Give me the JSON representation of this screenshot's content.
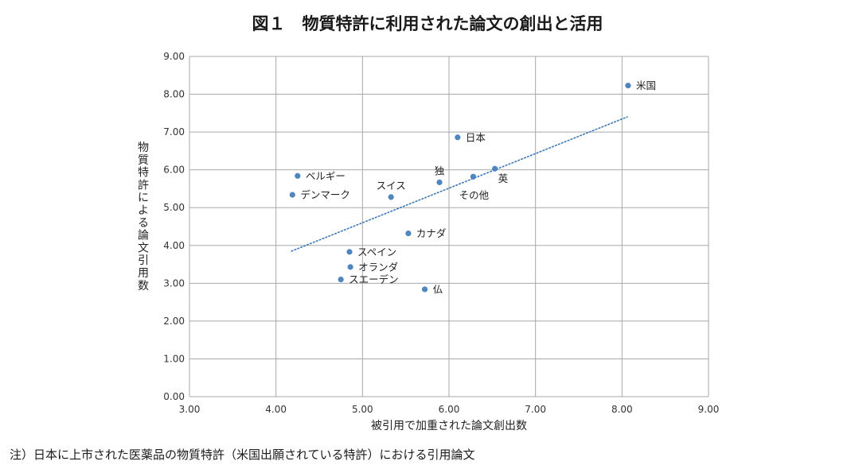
{
  "title": "図１　物質特許に利用された論文の創出と活用",
  "footnote": "注）日本に上市された医薬品の物質特許（米国出願されている特許）における引用論文",
  "chart_data": {
    "type": "scatter",
    "title": "図１　物質特許に利用された論文の創出と活用",
    "xlabel": "被引用で加重された論文創出数",
    "ylabel": "物質特許による論文引用数",
    "xlim": [
      3.0,
      9.0
    ],
    "ylim": [
      0.0,
      9.0
    ],
    "x_ticks": [
      "3.00",
      "4.00",
      "5.00",
      "6.00",
      "7.00",
      "8.00",
      "9.00"
    ],
    "y_ticks": [
      "0.00",
      "1.00",
      "2.00",
      "3.00",
      "4.00",
      "5.00",
      "6.00",
      "7.00",
      "8.00",
      "9.00"
    ],
    "grid": true,
    "point_color": "#4f86c0",
    "trend_color": "#3c78b8",
    "trendline": {
      "x": [
        4.18,
        8.06
      ],
      "y": [
        3.85,
        7.4
      ],
      "style": "dotted"
    },
    "points": [
      {
        "label": "米国",
        "x": 8.07,
        "y": 8.23,
        "label_pos": "right"
      },
      {
        "label": "日本",
        "x": 6.1,
        "y": 6.86,
        "label_pos": "right"
      },
      {
        "label": "独",
        "x": 5.89,
        "y": 5.67,
        "label_pos": "above"
      },
      {
        "label": "英",
        "x": 6.53,
        "y": 6.03,
        "label_pos": "below-right"
      },
      {
        "label": "その他",
        "x": 6.28,
        "y": 5.82,
        "label_pos": "below"
      },
      {
        "label": "ベルギー",
        "x": 4.25,
        "y": 5.84,
        "label_pos": "right"
      },
      {
        "label": "デンマーク",
        "x": 4.19,
        "y": 5.34,
        "label_pos": "right"
      },
      {
        "label": "スイス",
        "x": 5.33,
        "y": 5.28,
        "label_pos": "above"
      },
      {
        "label": "カナダ",
        "x": 5.53,
        "y": 4.32,
        "label_pos": "right"
      },
      {
        "label": "スペイン",
        "x": 4.85,
        "y": 3.83,
        "label_pos": "right"
      },
      {
        "label": "オランダ",
        "x": 4.86,
        "y": 3.43,
        "label_pos": "right"
      },
      {
        "label": "スエーデン",
        "x": 4.75,
        "y": 3.1,
        "label_pos": "right"
      },
      {
        "label": "仏",
        "x": 5.72,
        "y": 2.84,
        "label_pos": "right"
      }
    ]
  }
}
